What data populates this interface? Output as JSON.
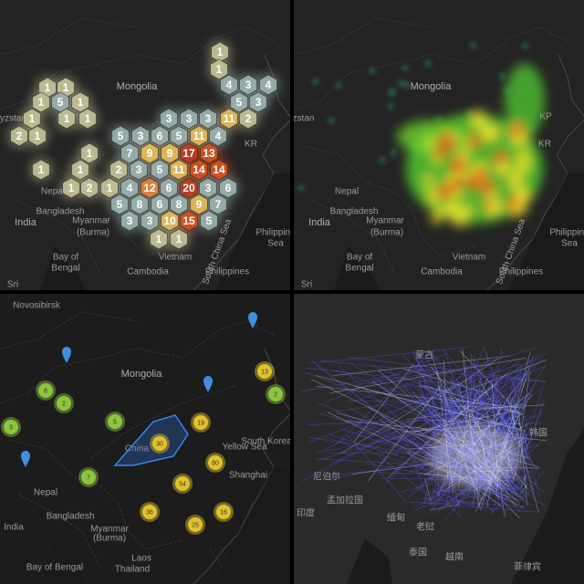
{
  "panels": [
    {
      "labels": [
        "Mongolia",
        "rgyzstan",
        "Nepal",
        "Bangladesh",
        "India",
        "Myanmar",
        "(Burma)",
        "Bay of",
        "Bengal",
        "Vietnam",
        "Cambodia",
        "Philippines",
        "Philippine",
        "Sea",
        "South China Sea",
        "KR",
        "Sri"
      ],
      "hexbins": [
        1,
        1,
        4,
        3,
        4,
        1,
        1,
        1,
        5,
        1,
        5,
        3,
        1,
        1,
        1,
        3,
        3,
        3,
        11,
        2,
        2,
        1,
        5,
        3,
        6,
        5,
        11,
        4,
        1,
        7,
        9,
        9,
        17,
        13,
        1,
        1,
        2,
        3,
        5,
        11,
        14,
        14,
        1,
        2,
        1,
        4,
        12,
        6,
        20,
        3,
        6,
        5,
        8,
        6,
        8,
        9,
        7,
        3,
        3,
        10,
        15,
        5,
        1,
        1
      ]
    },
    {
      "labels": [
        "Mongolia",
        "yzstan",
        "Nepal",
        "Bangladesh",
        "India",
        "Myanmar",
        "(Burma)",
        "Bay of",
        "Bengal",
        "Vietnam",
        "Cambodia",
        "Philippines",
        "Philippine",
        "Sea",
        "South China Sea",
        "KR",
        "KP",
        "Sri"
      ]
    },
    {
      "labels": [
        "Mongolia",
        "China",
        "Nepal",
        "India",
        "Bangladesh",
        "Myanmar",
        "(Burma)",
        "Laos",
        "Thailand",
        "Bay of Bengal",
        "Yellow Sea",
        "Shanghai",
        "South Korea",
        "Novosibirsk"
      ],
      "clusters": [
        {
          "value": 8,
          "color": "#8cc63f"
        },
        {
          "value": 2,
          "color": "#8cc63f"
        },
        {
          "value": 3,
          "color": "#8cc63f"
        },
        {
          "value": 5,
          "color": "#8cc63f"
        },
        {
          "value": 7,
          "color": "#8cc63f"
        },
        {
          "value": 13,
          "color": "#e2c22b"
        },
        {
          "value": 2,
          "color": "#8cc63f"
        },
        {
          "value": 19,
          "color": "#e2c22b"
        },
        {
          "value": 30,
          "color": "#e2c22b"
        },
        {
          "value": 80,
          "color": "#e2c22b"
        },
        {
          "value": 54,
          "color": "#e2c22b"
        },
        {
          "value": 36,
          "color": "#e2c22b"
        },
        {
          "value": 25,
          "color": "#e2c22b"
        },
        {
          "value": 16,
          "color": "#e2c22b"
        }
      ]
    },
    {
      "labels": [
        "蒙古",
        "尼泊尔",
        "孟加拉国",
        "印度",
        "缅甸",
        "老挝",
        "泰国",
        "越南",
        "菲律宾",
        "韩国"
      ]
    }
  ]
}
